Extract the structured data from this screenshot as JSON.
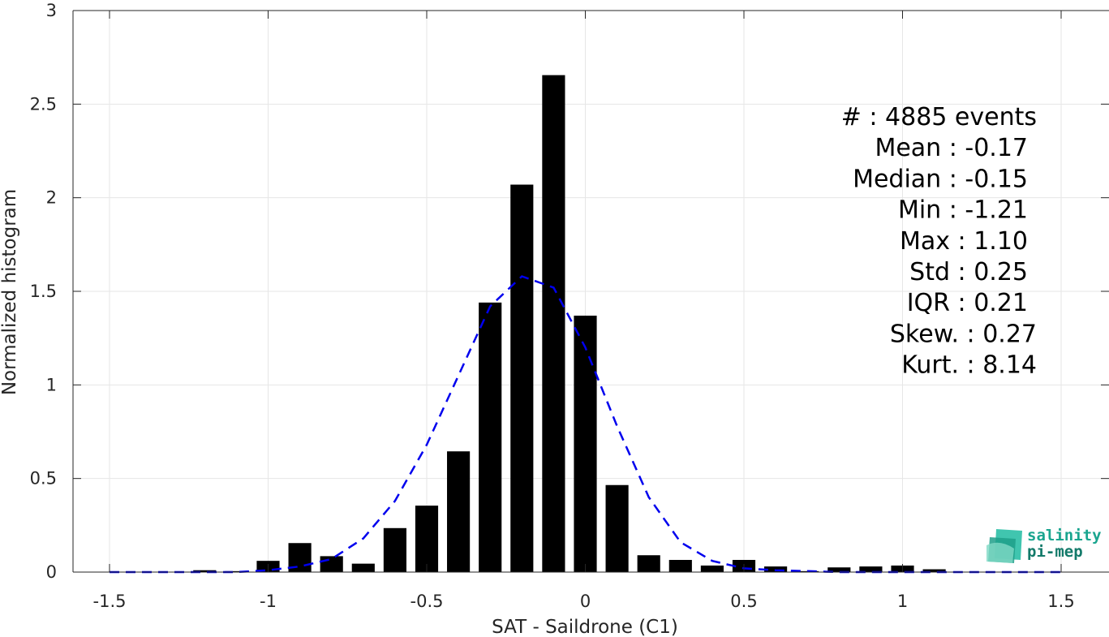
{
  "chart_data": {
    "type": "bar",
    "xlabel": "SAT - Saildrone (C1)",
    "ylabel": "Normalized histogram",
    "xlim": [
      -1.5,
      1.5
    ],
    "ylim": [
      0,
      3
    ],
    "xticks": [
      -1.5,
      -1,
      -0.5,
      0,
      0.5,
      1,
      1.5
    ],
    "xtick_labels": [
      "-1.5",
      "-1",
      "-0.5",
      "0",
      "0.5",
      "1",
      "1.5"
    ],
    "yticks": [
      0,
      0.5,
      1,
      1.5,
      2,
      2.5,
      3
    ],
    "ytick_labels": [
      "0",
      "0.5",
      "1",
      "1.5",
      "2",
      "2.5",
      "3"
    ],
    "grid": true,
    "bar_color": "#000000",
    "bins": {
      "centers": [
        -1.2,
        -1.1,
        -1.0,
        -0.9,
        -0.8,
        -0.7,
        -0.6,
        -0.5,
        -0.4,
        -0.3,
        -0.2,
        -0.1,
        0.0,
        0.1,
        0.2,
        0.3,
        0.4,
        0.5,
        0.6,
        0.7,
        0.8,
        0.9,
        1.0,
        1.1
      ],
      "values": [
        0.01,
        0.005,
        0.06,
        0.155,
        0.085,
        0.045,
        0.235,
        0.355,
        0.645,
        1.44,
        2.07,
        2.655,
        1.37,
        0.465,
        0.09,
        0.065,
        0.035,
        0.065,
        0.03,
        0.005,
        0.025,
        0.03,
        0.035,
        0.015
      ]
    },
    "fit_curve": {
      "color": "#0000ee",
      "style": "dashed",
      "x": [
        -1.5,
        -1.4,
        -1.3,
        -1.2,
        -1.1,
        -1.0,
        -0.9,
        -0.8,
        -0.7,
        -0.6,
        -0.5,
        -0.4,
        -0.3,
        -0.2,
        -0.1,
        0.0,
        0.1,
        0.2,
        0.3,
        0.4,
        0.5,
        0.6,
        0.7,
        0.8,
        0.9,
        1.0,
        1.1,
        1.2,
        1.3,
        1.4,
        1.5
      ],
      "y": [
        0,
        0,
        0,
        0,
        0,
        0.01,
        0.03,
        0.07,
        0.18,
        0.38,
        0.68,
        1.05,
        1.42,
        1.58,
        1.52,
        1.2,
        0.78,
        0.4,
        0.16,
        0.06,
        0.02,
        0.01,
        0.005,
        0,
        0,
        0,
        0,
        0,
        0,
        0,
        0
      ]
    }
  },
  "stats": [
    "#  : 4885 events",
    "Mean : -0.17",
    "Median : -0.15",
    "Min : -1.21",
    "Max : 1.10",
    "Std : 0.25",
    "IQR : 0.21",
    "Skew. : 0.27",
    "Kurt. : 8.14"
  ],
  "logo": {
    "line1": "salinity",
    "line2": "pi-mep",
    "color1": "#1aa58f",
    "color2": "#137a6a"
  }
}
